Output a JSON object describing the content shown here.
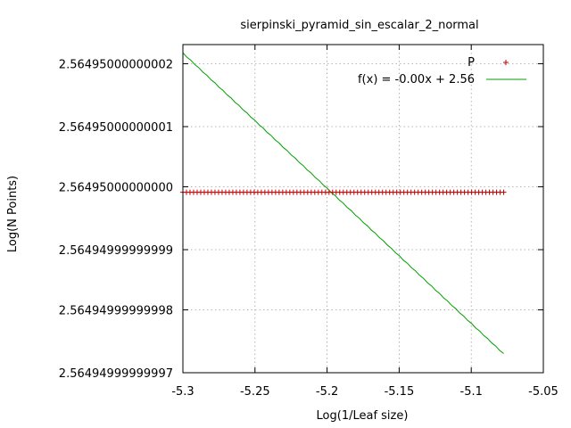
{
  "chart_data": {
    "type": "scatter",
    "title": "sierpinski_pyramid_sin_escalar_2_normal",
    "xlabel": "Log(1/Leaf size)",
    "ylabel": "Log(N Points)",
    "xlim": [
      -5.3,
      -5.05
    ],
    "ylim": [
      2.56494999999997,
      2.564950000000023
    ],
    "x_ticks": [
      {
        "value": -5.3,
        "label": "-5.3"
      },
      {
        "value": -5.25,
        "label": "-5.25"
      },
      {
        "value": -5.2,
        "label": "-5.2"
      },
      {
        "value": -5.15,
        "label": "-5.15"
      },
      {
        "value": -5.1,
        "label": "-5.1"
      },
      {
        "value": -5.05,
        "label": "-5.05"
      }
    ],
    "y_ticks": [
      {
        "value": 2.56494999999997,
        "label": "2.56494999999997"
      },
      {
        "value": 2.56494999999998,
        "label": "2.56494999999998"
      },
      {
        "value": 2.56494999999999,
        "label": "2.56494999999999"
      },
      {
        "value": 2.56495,
        "label": "2.56495000000000"
      },
      {
        "value": 2.56495000000001,
        "label": "2.56495000000001"
      },
      {
        "value": 2.56495000000002,
        "label": "2.56495000000002"
      }
    ],
    "grid": true,
    "legend_position": "top-right",
    "series": [
      {
        "name": "P",
        "kind": "points",
        "marker": "+",
        "color": "#c00000",
        "y": 2.564949999999999,
        "x_start": -5.3,
        "x_end": -5.0775,
        "count": 91
      },
      {
        "name": "f(x) = -0.00x + 2.56",
        "kind": "line",
        "color": "#00a000",
        "x": [
          -5.3,
          -5.0775
        ],
        "y": [
          2.564950000000022,
          2.564949999999973
        ]
      }
    ]
  }
}
